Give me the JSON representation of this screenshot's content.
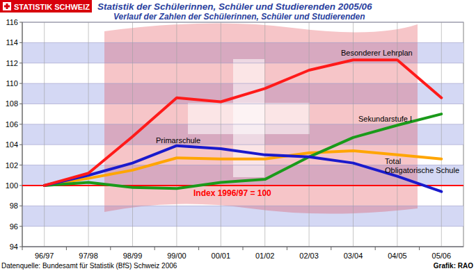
{
  "chart_data": {
    "type": "line",
    "brand": "STATISTIK SCHWEIZ",
    "title": "Statistik der Schülerinnen, Schüler und Studierenden 2005/06",
    "subtitle": "Verlauf der Zahlen der Schülerinnen, Schüler und Studierenden",
    "source": "Datenquelle: Bundesamt für Statistik (BfS) Schweiz 2006",
    "credit": "Grafik: RAO",
    "categories": [
      "96/97",
      "97/98",
      "98/99",
      "99/00",
      "00/01",
      "01/02",
      "02/03",
      "03/04",
      "04/05",
      "05/06"
    ],
    "series": [
      {
        "name": "Besonderer Lehrplan",
        "color": "#ff1a1a",
        "values": [
          100,
          101.2,
          104.8,
          108.6,
          108.2,
          109.5,
          111.3,
          112.3,
          112.3,
          108.6
        ]
      },
      {
        "name": "Primarschule",
        "color": "#1a1acc",
        "values": [
          100,
          101.0,
          102.2,
          103.9,
          103.6,
          103.0,
          102.8,
          102.2,
          100.9,
          99.4
        ]
      },
      {
        "name": "Sekundarstufe I",
        "color": "#1a9a1a",
        "values": [
          100,
          100.3,
          99.8,
          99.7,
          100.3,
          100.6,
          102.8,
          104.7,
          105.9,
          107.0
        ]
      },
      {
        "name": "Total Obligatorische Schule",
        "color": "#ffa500",
        "values": [
          100,
          100.7,
          101.5,
          102.7,
          102.6,
          102.6,
          103.2,
          103.4,
          103.0,
          102.6
        ]
      }
    ],
    "reference_line": {
      "value": 100,
      "label": "Index 1996/97 = 100",
      "color": "#ff0000"
    },
    "ylim": [
      94,
      116
    ],
    "yticks": [
      94,
      96,
      98,
      100,
      102,
      104,
      106,
      108,
      110,
      112,
      114,
      116
    ],
    "grid": true
  }
}
